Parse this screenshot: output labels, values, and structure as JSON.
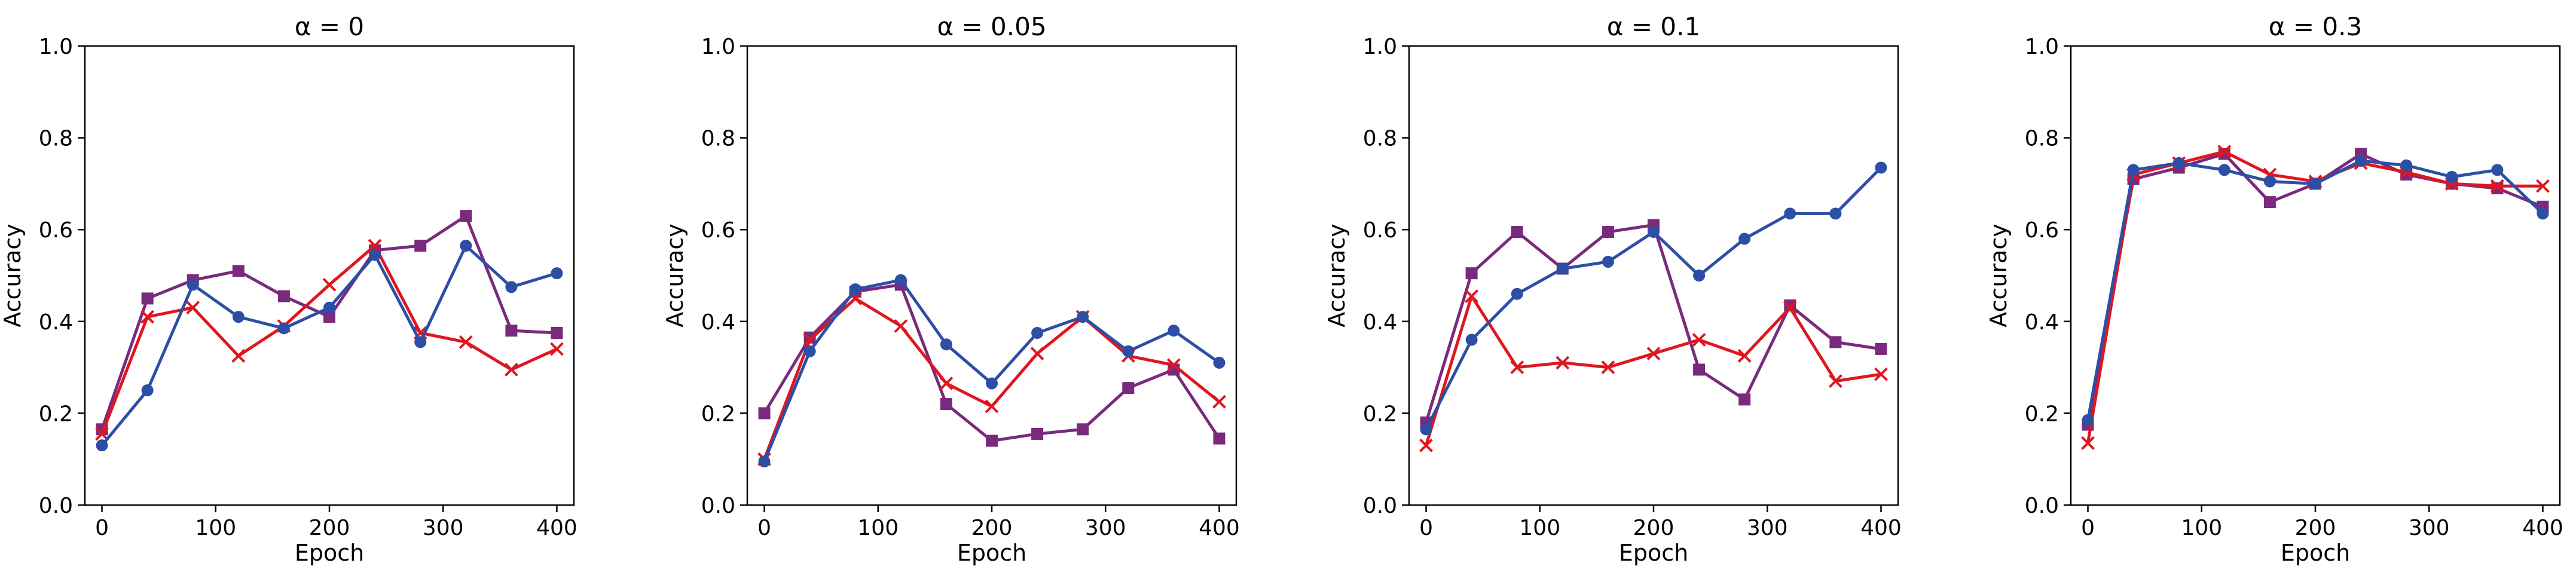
{
  "colors": {
    "blue": "#2d4ea5",
    "purple": "#7a2a7c",
    "red": "#e0161f"
  },
  "chart_data": [
    {
      "type": "line",
      "title": "α = 0",
      "xlabel": "Epoch",
      "ylabel": "Accuracy",
      "xlim": [
        -15,
        415
      ],
      "ylim": [
        0,
        1
      ],
      "xticks": [
        0,
        100,
        200,
        300,
        400
      ],
      "yticks": [
        0.0,
        0.2,
        0.4,
        0.6,
        0.8,
        1.0
      ],
      "x": [
        0,
        40,
        80,
        120,
        160,
        200,
        240,
        280,
        320,
        360,
        400
      ],
      "series": [
        {
          "name": "blue-circle",
          "marker": "circle",
          "color": "#2d4ea5",
          "values": [
            0.13,
            0.25,
            0.48,
            0.41,
            0.385,
            0.43,
            0.545,
            0.355,
            0.565,
            0.475,
            0.505
          ]
        },
        {
          "name": "purple-square",
          "marker": "square",
          "color": "#7a2a7c",
          "values": [
            0.165,
            0.45,
            0.49,
            0.51,
            0.455,
            0.41,
            0.555,
            0.565,
            0.63,
            0.38,
            0.375
          ]
        },
        {
          "name": "red-x",
          "marker": "x",
          "color": "#e0161f",
          "values": [
            0.155,
            0.41,
            0.43,
            0.325,
            0.39,
            0.48,
            0.565,
            0.375,
            0.355,
            0.295,
            0.34
          ]
        }
      ]
    },
    {
      "type": "line",
      "title": "α = 0.05",
      "xlabel": "Epoch",
      "ylabel": "Accuracy",
      "xlim": [
        -15,
        415
      ],
      "ylim": [
        0,
        1
      ],
      "xticks": [
        0,
        100,
        200,
        300,
        400
      ],
      "yticks": [
        0.0,
        0.2,
        0.4,
        0.6,
        0.8,
        1.0
      ],
      "x": [
        0,
        40,
        80,
        120,
        160,
        200,
        240,
        280,
        320,
        360,
        400
      ],
      "series": [
        {
          "name": "blue-circle",
          "marker": "circle",
          "color": "#2d4ea5",
          "values": [
            0.095,
            0.335,
            0.47,
            0.49,
            0.35,
            0.265,
            0.375,
            0.41,
            0.335,
            0.38,
            0.31
          ]
        },
        {
          "name": "purple-square",
          "marker": "square",
          "color": "#7a2a7c",
          "values": [
            0.2,
            0.365,
            0.465,
            0.48,
            0.22,
            0.14,
            0.155,
            0.165,
            0.255,
            0.295,
            0.145
          ]
        },
        {
          "name": "red-x",
          "marker": "x",
          "color": "#e0161f",
          "values": [
            0.1,
            0.36,
            0.45,
            0.39,
            0.265,
            0.215,
            0.33,
            0.41,
            0.325,
            0.305,
            0.225
          ]
        }
      ]
    },
    {
      "type": "line",
      "title": "α = 0.1",
      "xlabel": "Epoch",
      "ylabel": "Accuracy",
      "xlim": [
        -15,
        415
      ],
      "ylim": [
        0,
        1
      ],
      "xticks": [
        0,
        100,
        200,
        300,
        400
      ],
      "yticks": [
        0.0,
        0.2,
        0.4,
        0.6,
        0.8,
        1.0
      ],
      "x": [
        0,
        40,
        80,
        120,
        160,
        200,
        240,
        280,
        320,
        360,
        400
      ],
      "series": [
        {
          "name": "blue-circle",
          "marker": "circle",
          "color": "#2d4ea5",
          "values": [
            0.165,
            0.36,
            0.46,
            0.515,
            0.53,
            0.595,
            0.5,
            0.58,
            0.635,
            0.635,
            0.735
          ]
        },
        {
          "name": "purple-square",
          "marker": "square",
          "color": "#7a2a7c",
          "values": [
            0.18,
            0.505,
            0.595,
            0.515,
            0.595,
            0.61,
            0.295,
            0.23,
            0.435,
            0.355,
            0.34
          ]
        },
        {
          "name": "red-x",
          "marker": "x",
          "color": "#e0161f",
          "values": [
            0.13,
            0.455,
            0.3,
            0.31,
            0.3,
            0.33,
            0.36,
            0.325,
            0.43,
            0.27,
            0.285
          ]
        }
      ]
    },
    {
      "type": "line",
      "title": "α = 0.3",
      "xlabel": "Epoch",
      "ylabel": "Accuracy",
      "xlim": [
        -15,
        415
      ],
      "ylim": [
        0,
        1
      ],
      "xticks": [
        0,
        100,
        200,
        300,
        400
      ],
      "yticks": [
        0.0,
        0.2,
        0.4,
        0.6,
        0.8,
        1.0
      ],
      "x": [
        0,
        40,
        80,
        120,
        160,
        200,
        240,
        280,
        320,
        360,
        400
      ],
      "series": [
        {
          "name": "blue-circle",
          "marker": "circle",
          "color": "#2d4ea5",
          "values": [
            0.185,
            0.73,
            0.745,
            0.73,
            0.705,
            0.7,
            0.75,
            0.74,
            0.715,
            0.73,
            0.635
          ]
        },
        {
          "name": "purple-square",
          "marker": "square",
          "color": "#7a2a7c",
          "values": [
            0.175,
            0.71,
            0.735,
            0.765,
            0.66,
            0.7,
            0.765,
            0.72,
            0.7,
            0.69,
            0.65
          ]
        },
        {
          "name": "red-x",
          "marker": "x",
          "color": "#e0161f",
          "values": [
            0.135,
            0.72,
            0.745,
            0.77,
            0.72,
            0.705,
            0.745,
            0.725,
            0.7,
            0.695,
            0.695
          ]
        }
      ]
    }
  ]
}
